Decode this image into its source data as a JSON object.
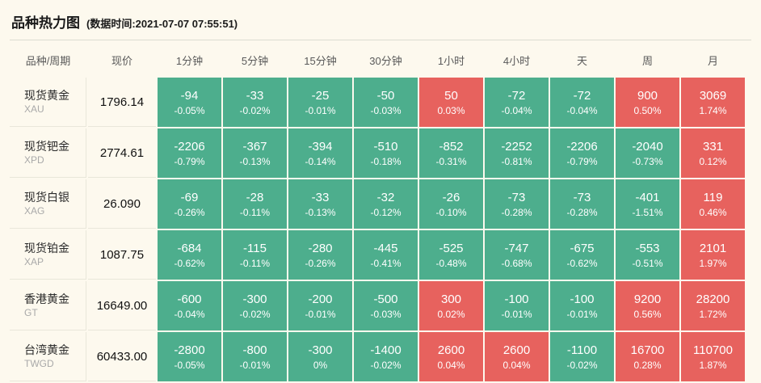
{
  "header": {
    "title": "品种热力图",
    "subtitle": "(数据时间:2021-07-07 07:55:51)"
  },
  "colors": {
    "up": "#e7625e",
    "down": "#4dae8d",
    "background": "#fdf9ee"
  },
  "table": {
    "columns": [
      "品种/周期",
      "现价",
      "1分钟",
      "5分钟",
      "15分钟",
      "30分钟",
      "1小时",
      "4小时",
      "天",
      "周",
      "月"
    ],
    "rows": [
      {
        "name": "现货黄金",
        "code": "XAU",
        "price": "1796.14",
        "cells": [
          {
            "value": "-94",
            "pct": "-0.05%",
            "dir": "down"
          },
          {
            "value": "-33",
            "pct": "-0.02%",
            "dir": "down"
          },
          {
            "value": "-25",
            "pct": "-0.01%",
            "dir": "down"
          },
          {
            "value": "-50",
            "pct": "-0.03%",
            "dir": "down"
          },
          {
            "value": "50",
            "pct": "0.03%",
            "dir": "up"
          },
          {
            "value": "-72",
            "pct": "-0.04%",
            "dir": "down"
          },
          {
            "value": "-72",
            "pct": "-0.04%",
            "dir": "down"
          },
          {
            "value": "900",
            "pct": "0.50%",
            "dir": "up"
          },
          {
            "value": "3069",
            "pct": "1.74%",
            "dir": "up"
          }
        ]
      },
      {
        "name": "现货钯金",
        "code": "XPD",
        "price": "2774.61",
        "cells": [
          {
            "value": "-2206",
            "pct": "-0.79%",
            "dir": "down"
          },
          {
            "value": "-367",
            "pct": "-0.13%",
            "dir": "down"
          },
          {
            "value": "-394",
            "pct": "-0.14%",
            "dir": "down"
          },
          {
            "value": "-510",
            "pct": "-0.18%",
            "dir": "down"
          },
          {
            "value": "-852",
            "pct": "-0.31%",
            "dir": "down"
          },
          {
            "value": "-2252",
            "pct": "-0.81%",
            "dir": "down"
          },
          {
            "value": "-2206",
            "pct": "-0.79%",
            "dir": "down"
          },
          {
            "value": "-2040",
            "pct": "-0.73%",
            "dir": "down"
          },
          {
            "value": "331",
            "pct": "0.12%",
            "dir": "up"
          }
        ]
      },
      {
        "name": "现货白银",
        "code": "XAG",
        "price": "26.090",
        "cells": [
          {
            "value": "-69",
            "pct": "-0.26%",
            "dir": "down"
          },
          {
            "value": "-28",
            "pct": "-0.11%",
            "dir": "down"
          },
          {
            "value": "-33",
            "pct": "-0.13%",
            "dir": "down"
          },
          {
            "value": "-32",
            "pct": "-0.12%",
            "dir": "down"
          },
          {
            "value": "-26",
            "pct": "-0.10%",
            "dir": "down"
          },
          {
            "value": "-73",
            "pct": "-0.28%",
            "dir": "down"
          },
          {
            "value": "-73",
            "pct": "-0.28%",
            "dir": "down"
          },
          {
            "value": "-401",
            "pct": "-1.51%",
            "dir": "down"
          },
          {
            "value": "119",
            "pct": "0.46%",
            "dir": "up"
          }
        ]
      },
      {
        "name": "现货铂金",
        "code": "XAP",
        "price": "1087.75",
        "cells": [
          {
            "value": "-684",
            "pct": "-0.62%",
            "dir": "down"
          },
          {
            "value": "-115",
            "pct": "-0.11%",
            "dir": "down"
          },
          {
            "value": "-280",
            "pct": "-0.26%",
            "dir": "down"
          },
          {
            "value": "-445",
            "pct": "-0.41%",
            "dir": "down"
          },
          {
            "value": "-525",
            "pct": "-0.48%",
            "dir": "down"
          },
          {
            "value": "-747",
            "pct": "-0.68%",
            "dir": "down"
          },
          {
            "value": "-675",
            "pct": "-0.62%",
            "dir": "down"
          },
          {
            "value": "-553",
            "pct": "-0.51%",
            "dir": "down"
          },
          {
            "value": "2101",
            "pct": "1.97%",
            "dir": "up"
          }
        ]
      },
      {
        "name": "香港黄金",
        "code": "GT",
        "price": "16649.00",
        "cells": [
          {
            "value": "-600",
            "pct": "-0.04%",
            "dir": "down"
          },
          {
            "value": "-300",
            "pct": "-0.02%",
            "dir": "down"
          },
          {
            "value": "-200",
            "pct": "-0.01%",
            "dir": "down"
          },
          {
            "value": "-500",
            "pct": "-0.03%",
            "dir": "down"
          },
          {
            "value": "300",
            "pct": "0.02%",
            "dir": "up"
          },
          {
            "value": "-100",
            "pct": "-0.01%",
            "dir": "down"
          },
          {
            "value": "-100",
            "pct": "-0.01%",
            "dir": "down"
          },
          {
            "value": "9200",
            "pct": "0.56%",
            "dir": "up"
          },
          {
            "value": "28200",
            "pct": "1.72%",
            "dir": "up"
          }
        ]
      },
      {
        "name": "台湾黄金",
        "code": "TWGD",
        "price": "60433.00",
        "cells": [
          {
            "value": "-2800",
            "pct": "-0.05%",
            "dir": "down"
          },
          {
            "value": "-800",
            "pct": "-0.01%",
            "dir": "down"
          },
          {
            "value": "-300",
            "pct": "0%",
            "dir": "down"
          },
          {
            "value": "-1400",
            "pct": "-0.02%",
            "dir": "down"
          },
          {
            "value": "2600",
            "pct": "0.04%",
            "dir": "up"
          },
          {
            "value": "2600",
            "pct": "0.04%",
            "dir": "up"
          },
          {
            "value": "-1100",
            "pct": "-0.02%",
            "dir": "down"
          },
          {
            "value": "16700",
            "pct": "0.28%",
            "dir": "up"
          },
          {
            "value": "110700",
            "pct": "1.87%",
            "dir": "up"
          }
        ]
      }
    ]
  }
}
